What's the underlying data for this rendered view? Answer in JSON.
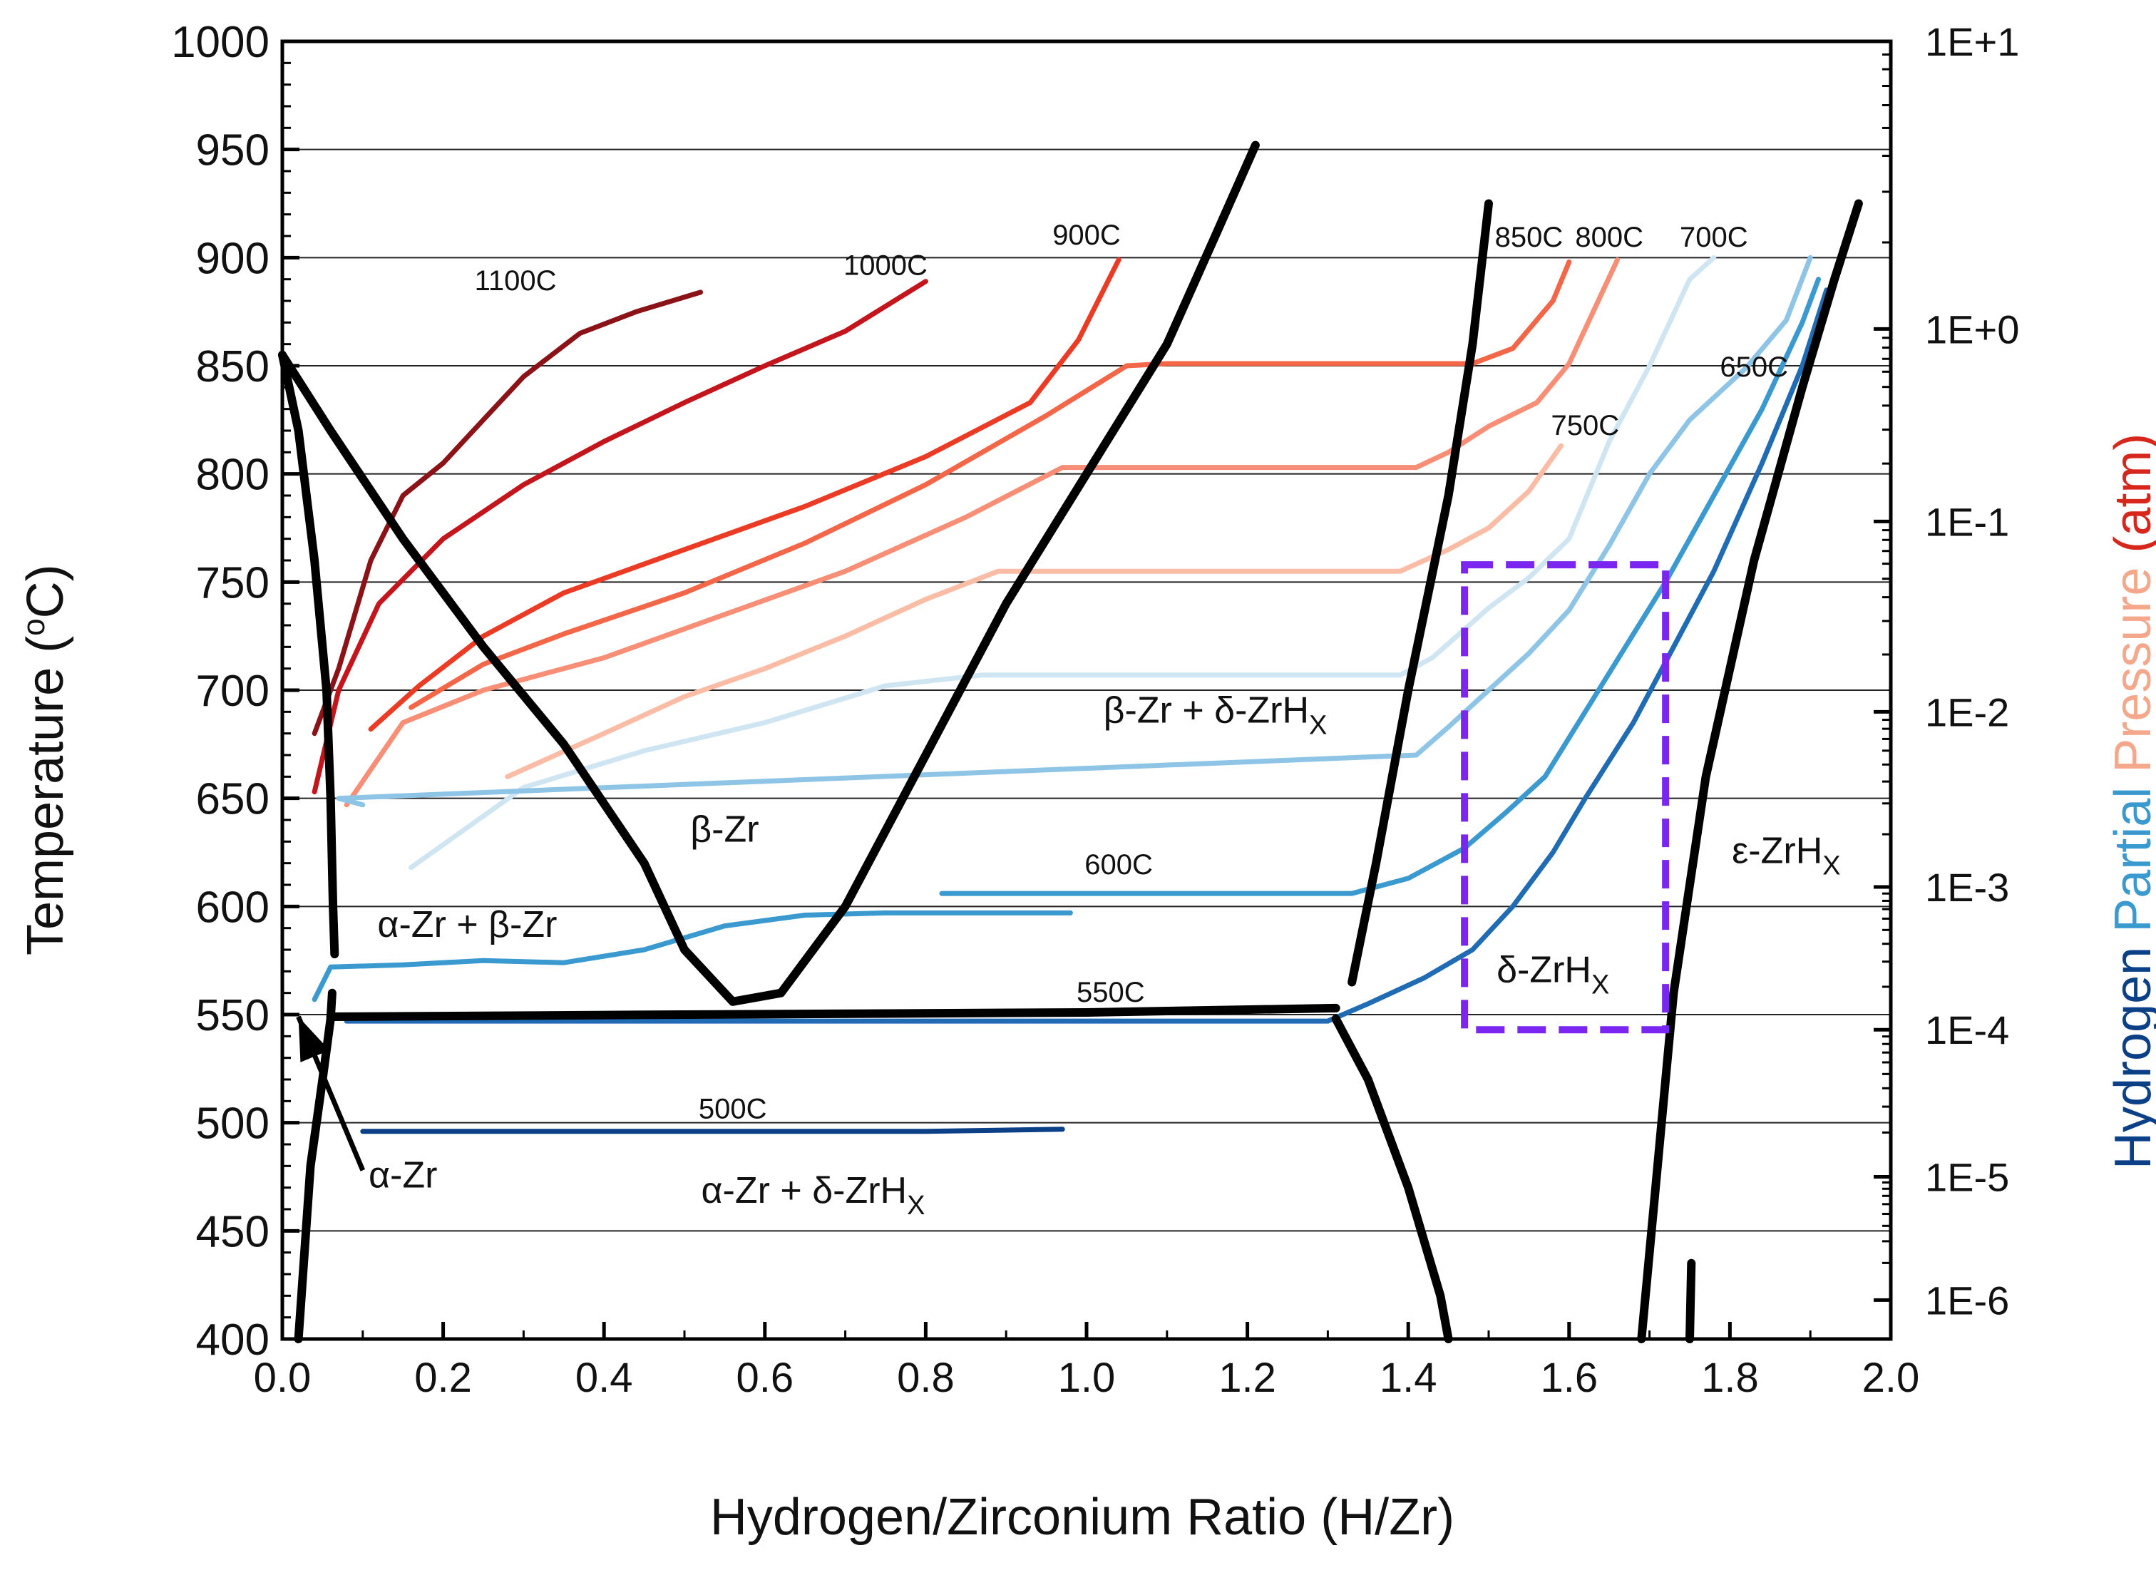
{
  "chart_data": {
    "type": "line",
    "title": "",
    "xlabel": "Hydrogen/Zirconium Ratio (H/Zr)",
    "ylabel": "Temperature (°C)",
    "ylabel_parts": {
      "main": "Temperature (",
      "sup": "o",
      "end": "C)"
    },
    "y2label_parts": [
      {
        "text": "Hydrogen",
        "color": "#0b3f86"
      },
      {
        "text": " Partial",
        "color": "#3a9ad0"
      },
      {
        "text": " Pressure",
        "color": "#f4a78a"
      },
      {
        "text": " (atm)",
        "color": "#d7261c"
      }
    ],
    "xlim": [
      0.0,
      2.0
    ],
    "ylim": [
      400,
      1000
    ],
    "x_ticks": [
      "0.0",
      "0.2",
      "0.4",
      "0.6",
      "0.8",
      "1.0",
      "1.2",
      "1.4",
      "1.6",
      "1.8",
      "2.0"
    ],
    "y_ticks": [
      "400",
      "450",
      "500",
      "550",
      "600",
      "650",
      "700",
      "750",
      "800",
      "850",
      "900",
      "950",
      "1000"
    ],
    "y2_ticks": [
      {
        "label": "1E+1",
        "temp": 1000
      },
      {
        "label": "1E+0",
        "temp": 867
      },
      {
        "label": "1E-1",
        "temp": 778
      },
      {
        "label": "1E-2",
        "temp": 690
      },
      {
        "label": "1E-3",
        "temp": 609
      },
      {
        "label": "1E-4",
        "temp": 543
      },
      {
        "label": "1E-5",
        "temp": 475
      },
      {
        "label": "1E-6",
        "temp": 418
      }
    ],
    "phase_boundaries": [
      {
        "name": "alpha-solvus",
        "points": [
          [
            0.02,
            400
          ],
          [
            0.035,
            480
          ],
          [
            0.05,
            520
          ],
          [
            0.06,
            548
          ],
          [
            0.062,
            560
          ]
        ]
      },
      {
        "name": "alpha-beta-upper",
        "points": [
          [
            0.0,
            855
          ],
          [
            0.02,
            820
          ],
          [
            0.04,
            760
          ],
          [
            0.055,
            700
          ],
          [
            0.06,
            650
          ],
          [
            0.063,
            600
          ],
          [
            0.065,
            578
          ]
        ]
      },
      {
        "name": "beta-transus",
        "points": [
          [
            0.0,
            855
          ],
          [
            0.06,
            820
          ],
          [
            0.15,
            770
          ],
          [
            0.25,
            720
          ],
          [
            0.35,
            675
          ],
          [
            0.45,
            620
          ],
          [
            0.5,
            580
          ],
          [
            0.56,
            556
          ],
          [
            0.62,
            560
          ],
          [
            0.7,
            600
          ],
          [
            0.8,
            670
          ],
          [
            0.9,
            740
          ],
          [
            1.0,
            800
          ],
          [
            1.1,
            860
          ],
          [
            1.16,
            910
          ],
          [
            1.21,
            952
          ]
        ]
      },
      {
        "name": "eutectoid",
        "points": [
          [
            0.06,
            549
          ],
          [
            0.5,
            550
          ],
          [
            1.0,
            551
          ],
          [
            1.31,
            553
          ]
        ]
      },
      {
        "name": "delta-left-high",
        "points": [
          [
            1.33,
            565
          ],
          [
            1.36,
            620
          ],
          [
            1.4,
            700
          ],
          [
            1.45,
            790
          ],
          [
            1.48,
            860
          ],
          [
            1.5,
            925
          ]
        ]
      },
      {
        "name": "delta-left-low",
        "points": [
          [
            1.31,
            548
          ],
          [
            1.35,
            520
          ],
          [
            1.4,
            470
          ],
          [
            1.44,
            420
          ],
          [
            1.45,
            400
          ]
        ]
      },
      {
        "name": "delta-epsilon-right",
        "points": [
          [
            1.69,
            400
          ],
          [
            1.71,
            480
          ],
          [
            1.73,
            560
          ],
          [
            1.77,
            660
          ],
          [
            1.83,
            760
          ],
          [
            1.89,
            840
          ],
          [
            1.93,
            890
          ],
          [
            1.96,
            925
          ]
        ]
      },
      {
        "name": "epsilon-short",
        "points": [
          [
            1.75,
            400
          ],
          [
            1.752,
            435
          ]
        ]
      }
    ],
    "series": [
      {
        "name": "1100C",
        "color": "#8b1317",
        "points": [
          [
            0.04,
            680
          ],
          [
            0.07,
            710
          ],
          [
            0.11,
            760
          ],
          [
            0.15,
            790
          ],
          [
            0.2,
            805
          ],
          [
            0.25,
            825
          ],
          [
            0.3,
            845
          ],
          [
            0.37,
            865
          ],
          [
            0.44,
            875
          ],
          [
            0.52,
            884
          ]
        ]
      },
      {
        "name": "1000C",
        "color": "#c4151c",
        "points": [
          [
            0.04,
            653
          ],
          [
            0.07,
            700
          ],
          [
            0.12,
            740
          ],
          [
            0.2,
            770
          ],
          [
            0.3,
            795
          ],
          [
            0.4,
            815
          ],
          [
            0.5,
            833
          ],
          [
            0.6,
            850
          ],
          [
            0.7,
            866
          ],
          [
            0.8,
            889
          ]
        ]
      },
      {
        "name": "900C",
        "color": "#ec3b24",
        "points": [
          [
            0.11,
            682
          ],
          [
            0.17,
            702
          ],
          [
            0.25,
            725
          ],
          [
            0.35,
            745
          ],
          [
            0.5,
            765
          ],
          [
            0.65,
            785
          ],
          [
            0.8,
            808
          ],
          [
            0.93,
            833
          ],
          [
            0.99,
            862
          ],
          [
            1.04,
            899
          ]
        ]
      },
      {
        "name": "850C",
        "color": "#f36648",
        "points": [
          [
            0.16,
            692
          ],
          [
            0.25,
            712
          ],
          [
            0.35,
            726
          ],
          [
            0.5,
            745
          ],
          [
            0.65,
            768
          ],
          [
            0.8,
            795
          ],
          [
            0.95,
            827
          ],
          [
            1.05,
            850
          ],
          [
            1.1,
            851
          ],
          [
            1.3,
            851
          ],
          [
            1.48,
            851
          ],
          [
            1.53,
            858
          ],
          [
            1.58,
            880
          ],
          [
            1.6,
            898
          ]
        ]
      },
      {
        "name": "800C",
        "color": "#f88e75",
        "points": [
          [
            0.08,
            647
          ],
          [
            0.15,
            685
          ],
          [
            0.25,
            700
          ],
          [
            0.4,
            715
          ],
          [
            0.55,
            735
          ],
          [
            0.7,
            755
          ],
          [
            0.85,
            780
          ],
          [
            0.97,
            803
          ],
          [
            1.1,
            803
          ],
          [
            1.3,
            803
          ],
          [
            1.41,
            803
          ],
          [
            1.45,
            810
          ],
          [
            1.5,
            822
          ],
          [
            1.56,
            833
          ],
          [
            1.6,
            851
          ],
          [
            1.66,
            899
          ]
        ]
      },
      {
        "name": "750C",
        "color": "#fbbca6",
        "points": [
          [
            0.28,
            660
          ],
          [
            0.4,
            680
          ],
          [
            0.5,
            697
          ],
          [
            0.6,
            710
          ],
          [
            0.7,
            725
          ],
          [
            0.8,
            742
          ],
          [
            0.89,
            755
          ],
          [
            1.0,
            755
          ],
          [
            1.2,
            755
          ],
          [
            1.39,
            755
          ],
          [
            1.45,
            765
          ],
          [
            1.5,
            775
          ],
          [
            1.55,
            792
          ],
          [
            1.59,
            813
          ]
        ]
      },
      {
        "name": "700C",
        "color": "#cfe6f2",
        "points": [
          [
            0.16,
            618
          ],
          [
            0.3,
            655
          ],
          [
            0.45,
            672
          ],
          [
            0.6,
            685
          ],
          [
            0.75,
            702
          ],
          [
            0.87,
            707
          ],
          [
            1.0,
            707
          ],
          [
            1.2,
            707
          ],
          [
            1.39,
            707
          ],
          [
            1.43,
            715
          ],
          [
            1.5,
            738
          ],
          [
            1.55,
            752
          ],
          [
            1.6,
            770
          ],
          [
            1.65,
            815
          ],
          [
            1.7,
            850
          ],
          [
            1.75,
            890
          ],
          [
            1.78,
            900
          ]
        ]
      },
      {
        "name": "650C",
        "color": "#8ec5e6",
        "points": [
          [
            0.1,
            647
          ],
          [
            0.07,
            650
          ],
          [
            1.41,
            670
          ],
          [
            1.45,
            683
          ],
          [
            1.5,
            700
          ],
          [
            1.55,
            717
          ],
          [
            1.6,
            737
          ],
          [
            1.65,
            767
          ],
          [
            1.7,
            800
          ],
          [
            1.75,
            825
          ],
          [
            1.82,
            849
          ],
          [
            1.87,
            871
          ],
          [
            1.9,
            900
          ]
        ]
      },
      {
        "name": "600C",
        "color": "#3a9ad0",
        "points": [
          [
            0.04,
            557
          ],
          [
            0.06,
            572
          ],
          [
            0.15,
            573
          ],
          [
            0.25,
            575
          ],
          [
            0.35,
            574
          ],
          [
            0.45,
            580
          ],
          [
            0.55,
            591
          ],
          [
            0.65,
            596
          ],
          [
            0.75,
            597
          ],
          [
            0.98,
            597
          ]
        ]
      },
      {
        "name": "600C-high",
        "color": "#3a9ad0",
        "points": [
          [
            0.82,
            606
          ],
          [
            1.0,
            606
          ],
          [
            1.2,
            606
          ],
          [
            1.33,
            606
          ],
          [
            1.4,
            613
          ],
          [
            1.47,
            627
          ],
          [
            1.52,
            643
          ],
          [
            1.57,
            660
          ],
          [
            1.62,
            690
          ],
          [
            1.67,
            720
          ],
          [
            1.72,
            750
          ],
          [
            1.78,
            790
          ],
          [
            1.84,
            830
          ],
          [
            1.89,
            870
          ],
          [
            1.91,
            890
          ]
        ]
      },
      {
        "name": "550C",
        "color": "#1f6cb4",
        "points": [
          [
            0.08,
            547
          ],
          [
            0.4,
            547
          ],
          [
            0.8,
            547
          ],
          [
            1.1,
            547
          ],
          [
            1.3,
            547
          ],
          [
            1.35,
            555
          ],
          [
            1.42,
            567
          ],
          [
            1.48,
            580
          ],
          [
            1.53,
            600
          ],
          [
            1.58,
            625
          ],
          [
            1.62,
            650
          ],
          [
            1.68,
            685
          ],
          [
            1.73,
            720
          ],
          [
            1.78,
            755
          ],
          [
            1.84,
            805
          ],
          [
            1.89,
            850
          ],
          [
            1.92,
            885
          ]
        ]
      },
      {
        "name": "500C",
        "color": "#0b3f86",
        "points": [
          [
            0.1,
            496
          ],
          [
            0.5,
            496
          ],
          [
            0.8,
            496
          ],
          [
            0.97,
            497
          ]
        ]
      }
    ],
    "annotations": [
      {
        "text": "1100C",
        "x": 0.29,
        "y": 885
      },
      {
        "text": "1000C",
        "x": 0.75,
        "y": 892
      },
      {
        "text": "900C",
        "x": 1.0,
        "y": 906
      },
      {
        "text": "850C",
        "x": 1.55,
        "y": 905
      },
      {
        "text": "800C",
        "x": 1.65,
        "y": 905
      },
      {
        "text": "700C",
        "x": 1.78,
        "y": 905
      },
      {
        "text": "750C",
        "x": 1.62,
        "y": 818
      },
      {
        "text": "650C",
        "x": 1.83,
        "y": 845
      },
      {
        "text": "600C",
        "x": 1.04,
        "y": 615
      },
      {
        "text": "550C",
        "x": 1.03,
        "y": 556
      },
      {
        "text": "500C",
        "x": 0.56,
        "y": 502
      }
    ],
    "phase_labels": [
      {
        "main": "β-Zr",
        "sub": "",
        "x": 0.55,
        "y": 630
      },
      {
        "main": "α-Zr + β-Zr",
        "sub": "",
        "x": 0.23,
        "y": 586
      },
      {
        "main": "β-Zr + δ-ZrH",
        "sub": "X",
        "x": 1.16,
        "y": 685
      },
      {
        "main": "α-Zr + δ-ZrH",
        "sub": "X",
        "x": 0.66,
        "y": 463
      },
      {
        "main": "δ-ZrH",
        "sub": "X",
        "x": 1.58,
        "y": 565
      },
      {
        "main": "ε-ZrH",
        "sub": "X",
        "x": 1.87,
        "y": 620
      },
      {
        "main": "α-Zr",
        "sub": "",
        "x": 0.15,
        "y": 470
      }
    ],
    "highlight_box": {
      "x0": 1.47,
      "x1": 1.72,
      "y0": 543,
      "y1": 758,
      "color": "#7a26f0"
    },
    "arrow": {
      "from": [
        0.1,
        478
      ],
      "to": [
        0.02,
        549
      ]
    }
  }
}
